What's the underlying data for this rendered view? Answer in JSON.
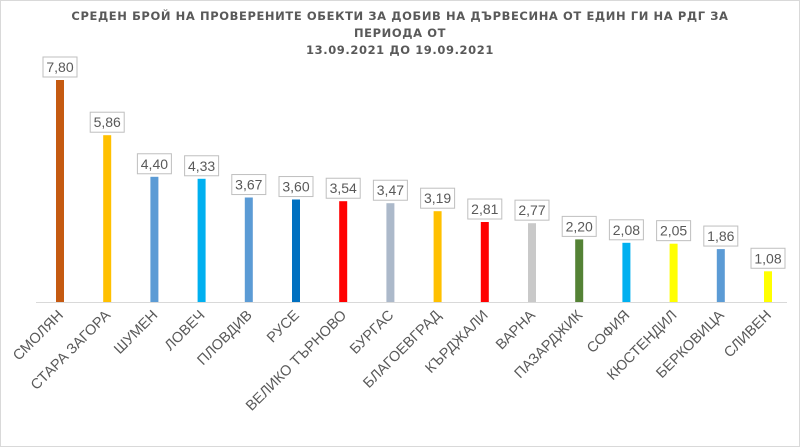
{
  "chart_data": {
    "type": "bar",
    "title_line1": "СРЕДЕН БРОЙ НА ПРОВЕРЕНИТЕ ОБЕКТИ ЗА ДОБИВ НА ДЪРВЕСИНА ОТ ЕДИН ГИ НА РДГ ЗА ПЕРИОДА ОТ",
    "title_line2": "13.09.2021 ДО 19.09.2021",
    "categories": [
      "СМОЛЯН",
      "СТАРА ЗАГОРА",
      "ШУМЕН",
      "ЛОВЕЧ",
      "ПЛОВДИВ",
      "РУСЕ",
      "ВЕЛИКО ТЪРНОВО",
      "БУРГАС",
      "БЛАГОЕВГРАД",
      "КЪРДЖАЛИ",
      "ВАРНА",
      "ПАЗАРДЖИК",
      "СОФИЯ",
      "КЮСТЕНДИЛ",
      "БЕРКОВИЦА",
      "СЛИВЕН"
    ],
    "values": [
      7.8,
      5.86,
      4.4,
      4.33,
      3.67,
      3.6,
      3.54,
      3.47,
      3.19,
      2.81,
      2.77,
      2.2,
      2.08,
      2.05,
      1.86,
      1.08
    ],
    "value_labels": [
      "7,80",
      "5,86",
      "4,40",
      "4,33",
      "3,67",
      "3,60",
      "3,54",
      "3,47",
      "3,19",
      "2,81",
      "2,77",
      "2,20",
      "2,08",
      "2,05",
      "1,86",
      "1,08"
    ],
    "colors": [
      "#c55a11",
      "#ffc000",
      "#5b9bd5",
      "#00b0f0",
      "#5b9bd5",
      "#0070c0",
      "#ff0000",
      "#acb9ca",
      "#ffc000",
      "#ff0000",
      "#c9c9c9",
      "#548235",
      "#00b0f0",
      "#ffff00",
      "#5b9bd5",
      "#ffff00"
    ],
    "ylim": [
      0,
      8
    ],
    "grid": false,
    "legend": "none"
  }
}
